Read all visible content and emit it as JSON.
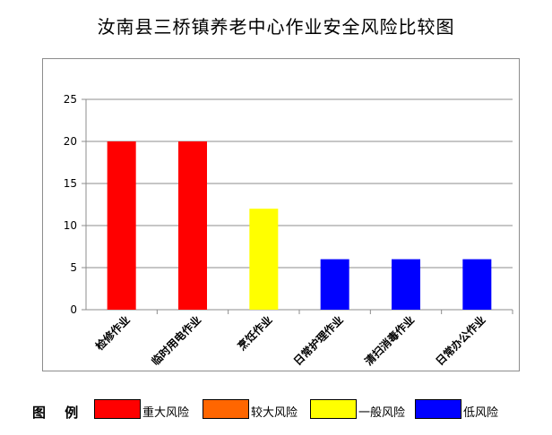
{
  "chart_data": {
    "type": "bar",
    "title": "汝南县三桥镇养老中心作业安全风险比较图",
    "categories": [
      "检修作业",
      "临时用电作业",
      "烹饪作业",
      "日常护理作业",
      "清扫消毒作业",
      "日常办公作业"
    ],
    "values": [
      20,
      20,
      12,
      6,
      6,
      6
    ],
    "bar_colors": [
      "#ff0000",
      "#ff0000",
      "#ffff00",
      "#0000ff",
      "#0000ff",
      "#0000ff"
    ],
    "ylim": [
      0,
      25
    ],
    "yticks": [
      0,
      5,
      10,
      15,
      20,
      25
    ],
    "grid": true,
    "legend_position": "bottom"
  },
  "legend": {
    "title": "图 例",
    "items": [
      {
        "label": "重大风险",
        "color": "#ff0000"
      },
      {
        "label": "较大风险",
        "color": "#ff6600"
      },
      {
        "label": "一般风险",
        "color": "#ffff00"
      },
      {
        "label": "低风险",
        "color": "#0000ff"
      }
    ]
  }
}
